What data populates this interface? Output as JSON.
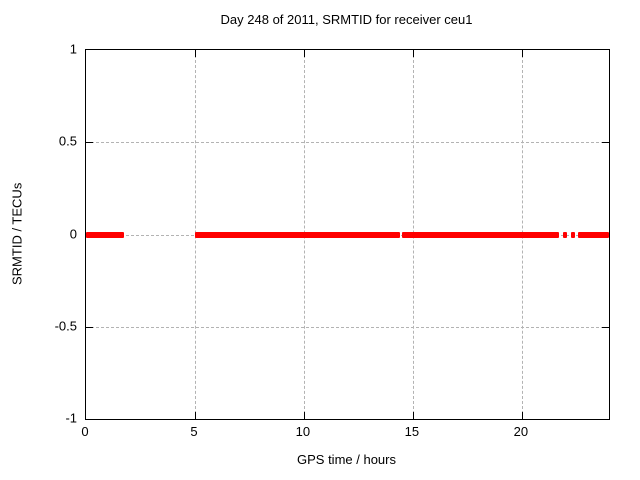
{
  "chart_data": {
    "type": "line",
    "title": "Day 248 of 2011, SRMTID for receiver ceu1",
    "xlabel": "GPS time / hours",
    "ylabel": "SRMTID / TECUs",
    "xlim": [
      0,
      24
    ],
    "ylim": [
      -1,
      1
    ],
    "x_ticks": [
      0,
      5,
      10,
      15,
      20
    ],
    "y_ticks": [
      1,
      0.5,
      0,
      -0.5,
      -1
    ],
    "grid": true,
    "legend": "none",
    "series": [
      {
        "name": "SRMTID",
        "color": "#ff0000",
        "value": 0,
        "line_thickness_px": 6,
        "segments_hours": [
          [
            0,
            1.73
          ],
          [
            5.0,
            14.42
          ],
          [
            14.5,
            21.72
          ],
          [
            22.57,
            24.0
          ]
        ],
        "sparse_points_hours": [
          22.0,
          22.33
        ]
      }
    ]
  },
  "colors": {
    "background": "#ffffff",
    "border": "#000000",
    "grid": "#b3b3b3",
    "data_line": "#ff0000",
    "text": "#000000"
  }
}
